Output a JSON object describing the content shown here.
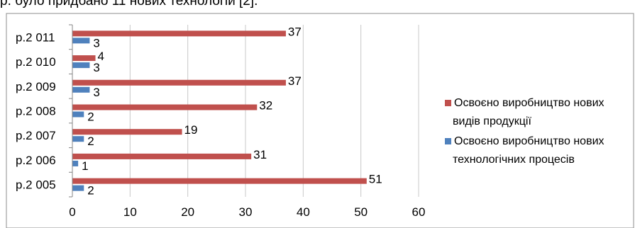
{
  "header": {
    "caption": "р. було придбано 11 нових технологій [2]."
  },
  "chart_data": {
    "type": "bar",
    "orientation": "horizontal",
    "title": "",
    "xlabel": "",
    "ylabel": "",
    "categories": [
      "р.2 005",
      "р.2 006",
      "р.2 007",
      "р.2 008",
      "р.2 009",
      "р.2 010",
      "р.2 011"
    ],
    "series": [
      {
        "name": "Освоєно виробництво нових видів продукції",
        "legend_lines": [
          "Освоєно виробництво нових",
          "видів продукції"
        ],
        "color": "#c0504d",
        "values": [
          51,
          31,
          19,
          32,
          37,
          4,
          37
        ]
      },
      {
        "name": "Освоєно виробництво нових технологічних процесів",
        "legend_lines": [
          "Освоєно виробництво нових",
          "технологічних процесів"
        ],
        "color": "#4f81bd",
        "values": [
          2,
          1,
          2,
          2,
          3,
          3,
          3
        ]
      }
    ],
    "xlim": [
      0,
      60
    ],
    "xticks": [
      0,
      10,
      20,
      30,
      40,
      50,
      60
    ],
    "grid": "vertical",
    "legend_position": "right",
    "data_labels": true
  }
}
